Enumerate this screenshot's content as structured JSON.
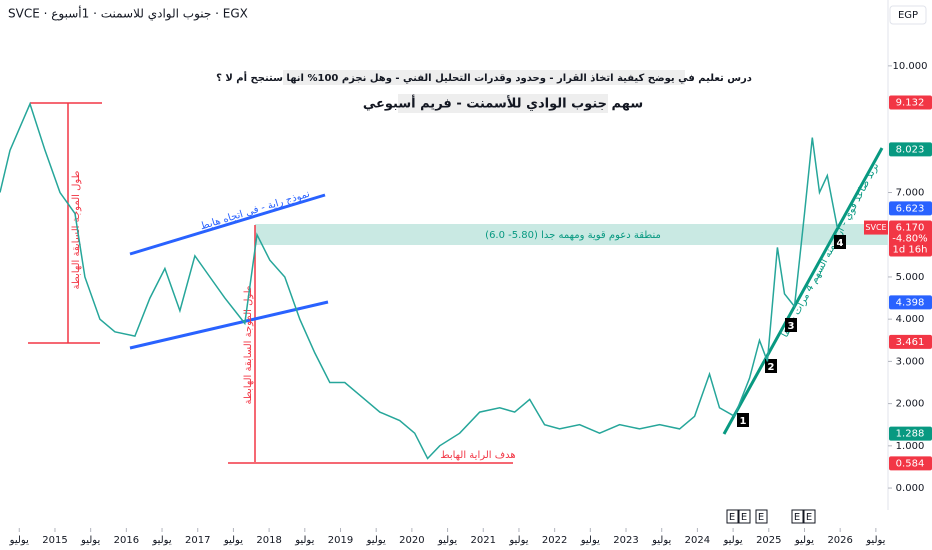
{
  "header": {
    "symbol": "SVCE · جنوب الوادي للاسمنت · 1أسبوع · EGX",
    "currency": "EGP"
  },
  "chart_data": {
    "type": "line",
    "title": "درس تعليم في يوضح كيفية اتخاذ القرار - وحدود وقدرات التحليل الفني - وهل نجزم 100% انها ستنجح أم لا ؟",
    "subtitle": "سهم جنوب الوادي للأسمنت - فريم أسبوعي",
    "x": [
      2014.23,
      2014.37,
      2014.65,
      2014.86,
      2015.07,
      2015.28,
      2015.42,
      2015.63,
      2015.84,
      2016.12,
      2016.33,
      2016.54,
      2016.75,
      2016.96,
      2017.17,
      2017.38,
      2017.66,
      2017.83,
      2018.01,
      2018.22,
      2018.43,
      2018.64,
      2018.85,
      2019.06,
      2019.27,
      2019.55,
      2019.83,
      2020.04,
      2020.22,
      2020.39,
      2020.67,
      2020.95,
      2021.23,
      2021.44,
      2021.65,
      2021.86,
      2022.07,
      2022.35,
      2022.63,
      2022.91,
      2023.19,
      2023.47,
      2023.75,
      2023.96,
      2024.17,
      2024.31,
      2024.52,
      2024.73,
      2024.87,
      2024.98,
      2025.12,
      2025.22,
      2025.36,
      2025.5,
      2025.61,
      2025.71,
      2025.82,
      2025.96
    ],
    "series": [
      {
        "name": "SVCE",
        "color": "#26a69a",
        "values": [
          7.0,
          8.0,
          9.1,
          8.0,
          7.0,
          6.5,
          5.0,
          4.0,
          3.7,
          3.6,
          4.5,
          5.2,
          4.2,
          5.5,
          5.0,
          4.5,
          3.9,
          6.0,
          5.4,
          5.0,
          4.0,
          3.2,
          2.5,
          2.5,
          2.2,
          1.8,
          1.6,
          1.3,
          0.7,
          1.0,
          1.3,
          1.8,
          1.9,
          1.8,
          2.1,
          1.5,
          1.4,
          1.5,
          1.3,
          1.5,
          1.4,
          1.5,
          1.4,
          1.7,
          2.7,
          1.9,
          1.7,
          2.6,
          3.5,
          3.0,
          5.7,
          4.6,
          4.3,
          6.5,
          8.3,
          7.0,
          7.4,
          6.17
        ]
      }
    ],
    "xlim": [
      2014.23,
      2026.67
    ],
    "ylim": [
      -0.52,
      11.56
    ],
    "xticks": [
      {
        "value": 2014.5,
        "label": "يوليو"
      },
      2015,
      {
        "value": 2015.5,
        "label": "يوليو"
      },
      2016,
      {
        "value": 2016.5,
        "label": "يوليو"
      },
      2017,
      {
        "value": 2017.5,
        "label": "يوليو"
      },
      2018,
      {
        "value": 2018.5,
        "label": "يوليو"
      },
      2019,
      {
        "value": 2019.5,
        "label": "يوليو"
      },
      2020,
      {
        "value": 2020.5,
        "label": "يوليو"
      },
      2021,
      {
        "value": 2021.5,
        "label": "يوليو"
      },
      2022,
      {
        "value": 2022.5,
        "label": "يوليو"
      },
      2023,
      {
        "value": 2023.5,
        "label": "يوليو"
      },
      2024,
      {
        "value": 2024.5,
        "label": "يوليو"
      },
      2025,
      {
        "value": 2025.5,
        "label": "يوليو"
      },
      2026,
      {
        "value": 2026.5,
        "label": "يوليو"
      }
    ],
    "yticks": [
      {
        "value": 0,
        "label": "0.000"
      },
      {
        "value": 1,
        "label": "1.000"
      },
      {
        "value": 2,
        "label": "2.000"
      },
      {
        "value": 3,
        "label": "3.000"
      },
      {
        "value": 4,
        "label": "4.000"
      },
      {
        "value": 5,
        "label": "5.000"
      },
      {
        "value": 7,
        "label": "7.000"
      },
      {
        "value": 10,
        "label": "10.000"
      }
    ],
    "price_labels": [
      {
        "value": 9.132,
        "color": "#f23645"
      },
      {
        "value": 8.023,
        "color": "#089981"
      },
      {
        "value": 6.623,
        "color": "#2962ff"
      },
      {
        "value": 4.398,
        "color": "#2962ff"
      },
      {
        "value": 3.461,
        "color": "#f23645"
      },
      {
        "value": 1.288,
        "color": "#089981"
      },
      {
        "value": 0.584,
        "color": "#f23645"
      }
    ],
    "last_price": {
      "value": 6.17,
      "label": "6.170",
      "change": "-4.80%",
      "countdown": "1d 16h",
      "color": "#f23645"
    },
    "annotations": {
      "support_zone": "منطقة دعوم قوية ومهمه جدا (5.80- 6.0)",
      "pennant": "نموذج راية - في اتجاه هابط",
      "wave1": "طول الموجة السابقة الهابطة",
      "wave2": "طول الموجة السابقة الهابطة",
      "target": "هدف الراية الهابط",
      "trend": "ترند صاعد قوي - ارتد منه السهم 4 مرات سابقا",
      "touches": [
        "1",
        "2",
        "3",
        "4"
      ],
      "events": [
        "E",
        "E",
        "E",
        "E",
        "E"
      ]
    }
  }
}
